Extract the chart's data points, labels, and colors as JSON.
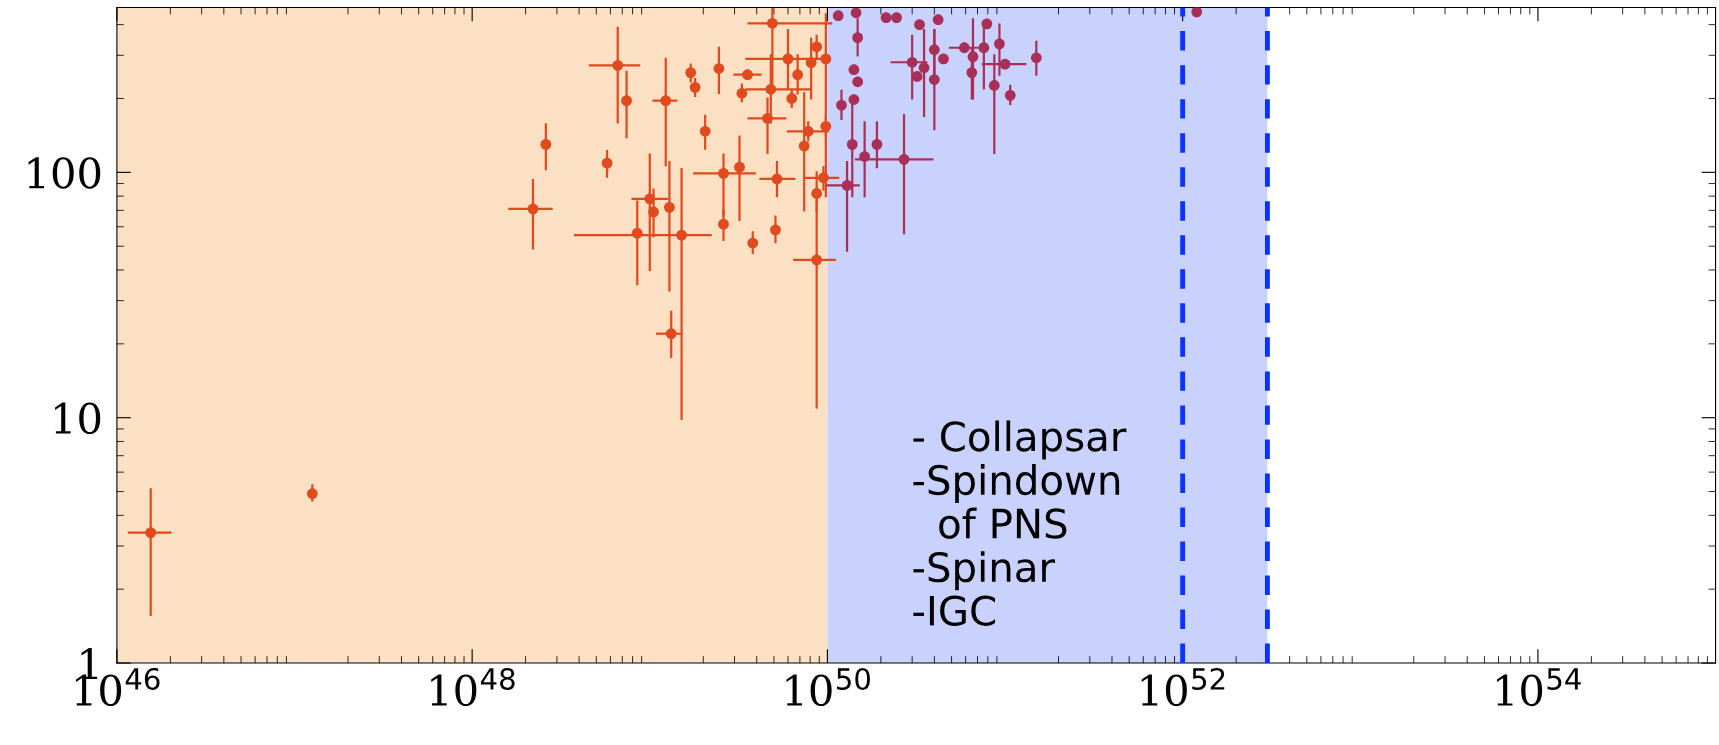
{
  "chart_data": {
    "type": "scatter",
    "marker": "circle",
    "log": "xy",
    "grid": false,
    "xlim": [
      1e+46,
      1e+55
    ],
    "ylim": [
      1,
      470
    ],
    "xticks": [
      {
        "value": 1e+46,
        "label": "10$^{46}$"
      },
      {
        "value": 1e+48,
        "label": "10$^{48}$"
      },
      {
        "value": 1e+50,
        "label": "10$^{50}$"
      },
      {
        "value": 1e+52,
        "label": "10$^{52}$"
      },
      {
        "value": 1e+54,
        "label": "10$^{54}$"
      }
    ],
    "yticks": [
      1,
      10,
      100
    ],
    "bands": [
      {
        "axis": "x",
        "from": 1e+46,
        "to": 1e+50,
        "color": "#fce0c4"
      },
      {
        "axis": "x",
        "from": 1e+50,
        "to": 3e+52,
        "color": "#c8d2fc"
      }
    ],
    "ref_lines": [
      {
        "axis": "x",
        "value": 1e+52,
        "color": "#0a32ff",
        "line_style": "dashed"
      },
      {
        "axis": "x",
        "value": 3e+52,
        "color": "#0a32ff",
        "line_style": "dashed"
      }
    ],
    "annotations": [
      "- Collapsar\n-Spindown\n  of PNS\n-Spinar\n-IGC"
    ],
    "series": [
      {
        "color": "#e04a1e",
        "x": [
          1.55e+46,
          1.26e+47,
          1.32e+49,
          6.6e+48,
          7.4e+48,
          2.6e+48,
          5.75e+48,
          2.2e+48,
          4.9e+49,
          1.23e+49,
          1.7e+49,
          1.8e+49,
          2.45e+49,
          3.55e+49,
          3.3e+49,
          4.8e+49,
          6e+49,
          6.8e+49,
          6.3e+49,
          8.1e+49,
          8.7e+49,
          9.8e+49,
          2.05e+49,
          4.6e+49,
          7.8e+49,
          7.4e+49,
          9.8e+49,
          2.6e+49,
          3.2e+49,
          5.2e+49,
          9.5e+49,
          8.7e+49,
          1e+49,
          1.05e+49,
          1.29e+49,
          8.5e+48,
          1.51e+49,
          2.6e+49,
          3.8e+49,
          5.1e+49,
          8.7e+49
        ],
        "values": [
          3.4,
          4.9,
          22,
          273,
          196,
          130,
          109,
          71,
          405,
          196,
          255,
          222,
          265,
          250,
          210,
          218,
          290,
          250,
          200,
          280,
          325,
          290,
          147,
          166,
          147,
          128,
          154,
          99,
          105,
          94,
          95,
          82,
          78,
          69,
          72,
          56.5,
          55.5,
          61.5,
          51.5,
          58.3,
          44
        ],
        "errors": [
          [
            1.57,
            5.1
          ],
          [
            4.6,
            5.3
          ],
          [
            17.7,
            27
          ],
          [
            160,
            388
          ],
          [
            139,
            257
          ],
          [
            103,
            157
          ],
          [
            96,
            122
          ],
          [
            49,
            93
          ],
          [
            230,
            470
          ],
          [
            107,
            290
          ],
          [
            235,
            275
          ],
          [
            205,
            240
          ],
          [
            211,
            322
          ],
          null,
          [
            195,
            228
          ],
          [
            160,
            300
          ],
          [
            220,
            380
          ],
          [
            210,
            300
          ],
          [
            185,
            215
          ],
          [
            200,
            350
          ],
          [
            290,
            360
          ],
          [
            80,
            440
          ],
          [
            125,
            170
          ],
          [
            120,
            200
          ],
          [
            135,
            160
          ],
          [
            70,
            210
          ],
          [
            140,
            170
          ],
          [
            67,
            118
          ],
          [
            64,
            140
          ],
          [
            80,
            110
          ],
          [
            85,
            105
          ],
          [
            70,
            100
          ],
          [
            40,
            118
          ],
          [
            55,
            85
          ],
          [
            33,
            110
          ],
          [
            35,
            76
          ],
          [
            9.9,
            103
          ],
          [
            53,
            70
          ],
          [
            47,
            57
          ],
          [
            52,
            66
          ],
          [
            11,
            75.5
          ]
        ],
        "xerrors": [
          [
            1.17e+46,
            2e+46
          ],
          null,
          [
            1.1e+49,
            1.51e+49
          ],
          [
            4.6e+48,
            8.7e+48
          ],
          null,
          null,
          null,
          [
            1.62e+48,
            2.8e+48
          ],
          [
            3.6e+49,
            1.05e+50
          ],
          [
            1.05e+49,
            1.41e+49
          ],
          null,
          null,
          null,
          [
            3e+49,
            4.2e+49
          ],
          null,
          [
            3.5e+49,
            7.9e+49
          ],
          [
            3.5e+49,
            9.5e+49
          ],
          null,
          null,
          null,
          null,
          null,
          null,
          [
            3.6e+49,
            5.8e+49
          ],
          [
            6e+49,
            1e+50
          ],
          null,
          null,
          [
            1.78e+49,
            3.9e+49
          ],
          null,
          [
            4.2e+49,
            6.5e+49
          ],
          [
            7.5e+49,
            1.15e+50
          ],
          null,
          [
            8e+48,
            1.25e+49
          ],
          null,
          null,
          null,
          [
            3.8e+48,
            2.2e+49
          ],
          null,
          null,
          null,
          [
            6.5e+49,
            1.1e+50
          ]
        ]
      },
      {
        "color": "#a83058",
        "x": [
          1.15e+50,
          1.45e+50,
          1.48e+50,
          2.14e+50,
          2.45e+50,
          3.3e+50,
          4.2e+50,
          7.9e+50,
          1.41e+50,
          1.48e+50,
          1.2e+50,
          1.41e+50,
          3e+50,
          3.5e+50,
          3.2e+50,
          4e+50,
          4.5e+50,
          4e+50,
          5.9e+50,
          6.6e+50,
          7.6e+50,
          9.3e+50,
          6.5e+50,
          1e+51,
          8.7e+50,
          1.07e+51,
          1.5e+51,
          1.38e+50,
          1.62e+50,
          1.9e+50,
          2.7e+50,
          1.29e+50,
          1.2e+52
        ],
        "values": [
          435,
          447,
          354,
          427,
          427,
          400,
          419,
          403,
          262,
          234,
          188,
          198,
          281,
          267,
          246,
          316,
          290,
          239,
          322,
          296,
          322,
          334,
          255,
          276,
          226,
          206,
          293,
          130,
          116,
          130,
          113,
          88.5,
          451
        ],
        "errors": [
          null,
          null,
          [
            300,
            420
          ],
          null,
          null,
          null,
          null,
          null,
          null,
          null,
          [
            165,
            215
          ],
          null,
          [
            200,
            360
          ],
          [
            170,
            380
          ],
          null,
          [
            250,
            380
          ],
          null,
          [
            150,
            380
          ],
          null,
          [
            200,
            420
          ],
          [
            220,
            400
          ],
          [
            250,
            400
          ],
          [
            200,
            320
          ],
          null,
          [
            120,
            300
          ],
          [
            190,
            225
          ],
          [
            250,
            340
          ],
          [
            80,
            200
          ],
          [
            80,
            160
          ],
          [
            105,
            160
          ],
          [
            56.5,
            171
          ],
          [
            48,
            110
          ],
          null
        ],
        "xerrors": [
          null,
          null,
          null,
          null,
          null,
          null,
          null,
          null,
          null,
          null,
          null,
          null,
          [
            2.3e+50,
            3.6e+50
          ],
          null,
          null,
          null,
          null,
          null,
          [
            4.9e+50,
            7e+50
          ],
          null,
          null,
          null,
          null,
          [
            7.5e+50,
            1.3e+51
          ],
          null,
          null,
          null,
          null,
          null,
          null,
          [
            1.45e+50,
            3.9e+50
          ],
          [
            1e+50,
            1.5e+50
          ],
          null
        ]
      }
    ]
  }
}
